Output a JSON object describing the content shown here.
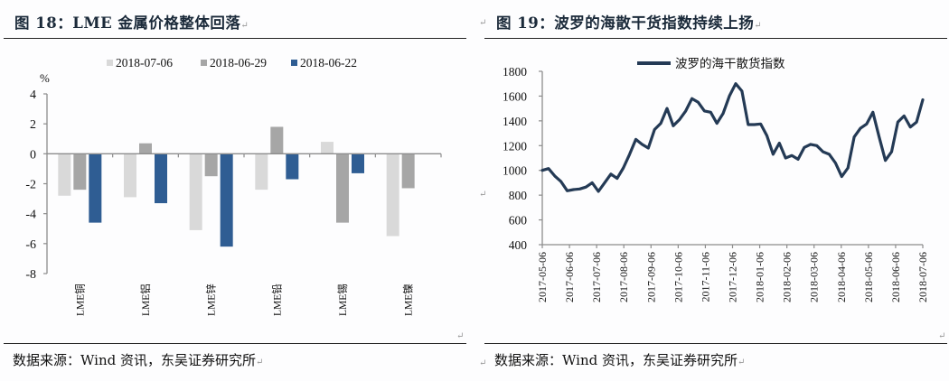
{
  "left": {
    "title_label": "图 18：",
    "title_text": "LME 金属价格整体回落",
    "source": "数据来源：Wind 资讯，东吴证券研究所"
  },
  "right": {
    "title_label": "图 19：",
    "title_text": "波罗的海散干货指数持续上扬",
    "source": "数据来源：Wind 资讯，东吴证券研究所"
  },
  "pilcrow": "↵",
  "chart_data": [
    {
      "type": "bar",
      "title": "LME 金属价格整体回落",
      "ylabel": "%",
      "xlabel": "",
      "ylim": [
        -8,
        4
      ],
      "yticks": [
        4,
        2,
        0,
        -2,
        -4,
        -6,
        -8
      ],
      "categories": [
        "LME铜",
        "LME铝",
        "LME锌",
        "LME铅",
        "LME锡",
        "LME镍"
      ],
      "legend_position": "top",
      "grid": false,
      "series": [
        {
          "name": "2018-07-06",
          "color": "#d9d9d9",
          "values": [
            -2.8,
            -2.9,
            -5.1,
            -2.4,
            0.8,
            -5.5
          ]
        },
        {
          "name": "2018-06-29",
          "color": "#a6a6a6",
          "values": [
            -2.4,
            0.7,
            -1.5,
            1.8,
            -4.6,
            -2.3
          ]
        },
        {
          "name": "2018-06-22",
          "color": "#2f5d93",
          "values": [
            -4.6,
            -3.3,
            -6.2,
            -1.7,
            -1.3,
            null
          ]
        }
      ]
    },
    {
      "type": "line",
      "title": "波罗的海散干货指数持续上扬",
      "xlabel": "",
      "ylabel": "",
      "ylim": [
        400,
        1800
      ],
      "yticks": [
        1800,
        1600,
        1400,
        1200,
        1000,
        800,
        600,
        400
      ],
      "xticks": [
        "2017-05-06",
        "2017-06-06",
        "2017-07-06",
        "2017-08-06",
        "2017-09-06",
        "2017-10-06",
        "2017-11-06",
        "2017-12-06",
        "2018-01-06",
        "2018-02-06",
        "2018-03-06",
        "2018-04-06",
        "2018-05-06",
        "2018-06-06",
        "2018-07-06"
      ],
      "legend_position": "top",
      "grid": false,
      "series": [
        {
          "name": "波罗的海干散货指数",
          "color": "#243a55",
          "values": [
            1000,
            1015,
            955,
            910,
            835,
            845,
            850,
            865,
            900,
            830,
            900,
            970,
            935,
            1020,
            1130,
            1250,
            1210,
            1180,
            1330,
            1380,
            1500,
            1360,
            1410,
            1480,
            1580,
            1550,
            1480,
            1470,
            1380,
            1460,
            1600,
            1700,
            1640,
            1370,
            1370,
            1375,
            1280,
            1130,
            1220,
            1100,
            1120,
            1090,
            1185,
            1210,
            1200,
            1150,
            1130,
            1060,
            950,
            1020,
            1270,
            1340,
            1375,
            1470,
            1270,
            1080,
            1150,
            1390,
            1440,
            1350,
            1390,
            1570
          ]
        }
      ]
    }
  ]
}
